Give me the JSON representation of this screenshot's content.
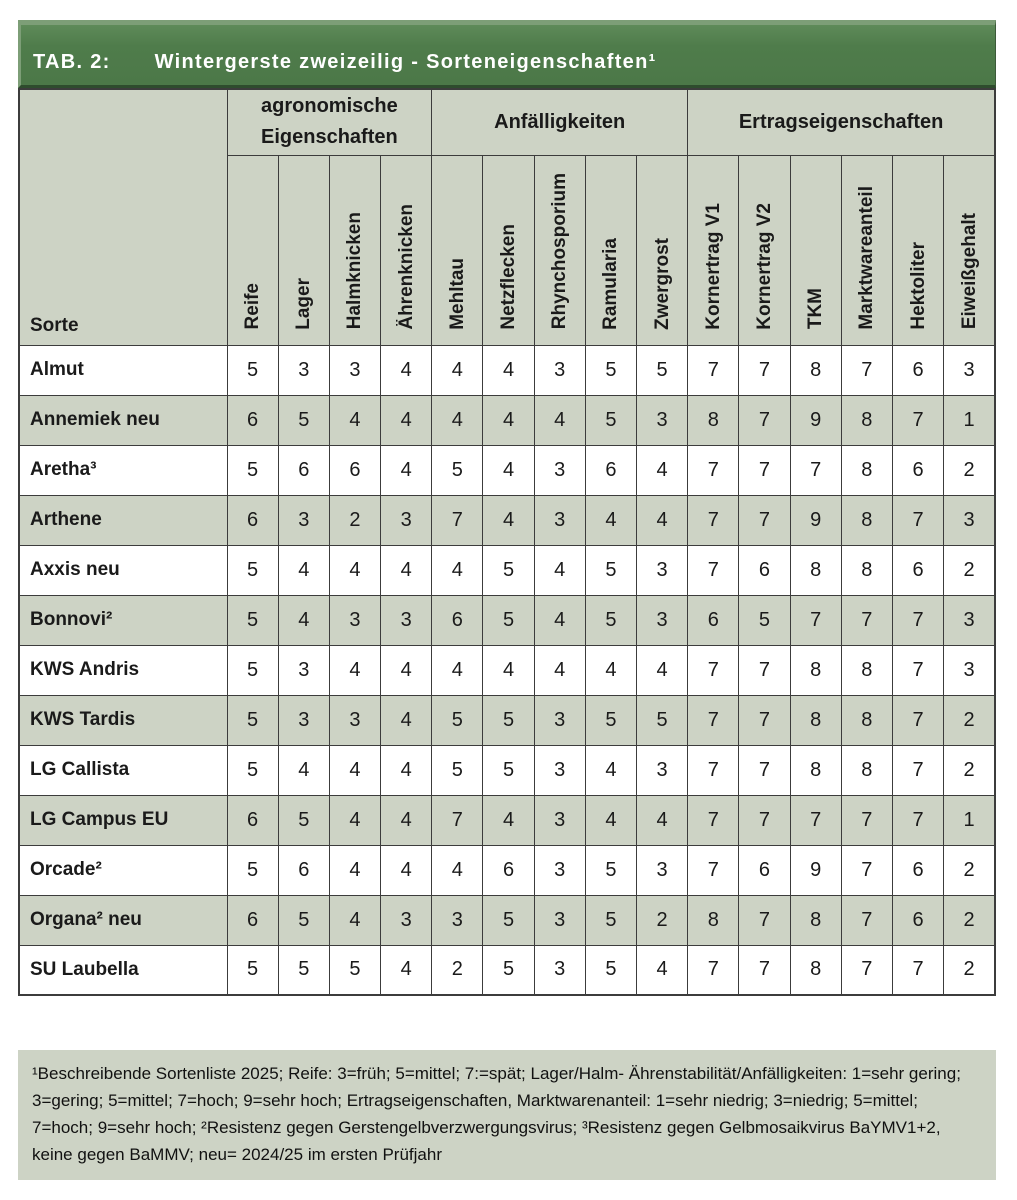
{
  "colors": {
    "title_bar_green": "#4f7c4b",
    "title_bar_green_light": "#7d9e77",
    "title_bar_green_dark": "#2e4c2d",
    "header_and_shade_bg": "#cdd3c5",
    "row_white": "#ffffff",
    "border": "#3c3c3c",
    "title_text": "#ffffff",
    "body_text": "#1a1a1a"
  },
  "title": {
    "label": "TAB. 2:",
    "text": "Wintergerste zweizeilig - Sorteneigenschaften¹"
  },
  "table": {
    "sorte_label": "Sorte",
    "groups": [
      {
        "label": "agronomische Eigenschaften",
        "span": 4
      },
      {
        "label": "Anfälligkeiten",
        "span": 5
      },
      {
        "label": "Ertragseigenschaften",
        "span": 6
      }
    ],
    "columns": [
      "Reife",
      "Lager",
      "Halmknicken",
      "Ährenknicken",
      "Mehltau",
      "Netzflecken",
      "Rhynchosporium",
      "Ramularia",
      "Zwergrost",
      "Kornertrag V1",
      "Kornertrag V2",
      "TKM",
      "Marktwareanteil",
      "Hektoliter",
      "Eiweißgehalt"
    ],
    "rows": [
      {
        "name": "Almut",
        "values": [
          5,
          3,
          3,
          4,
          4,
          4,
          3,
          5,
          5,
          7,
          7,
          8,
          7,
          6,
          3
        ]
      },
      {
        "name": "Annemiek neu",
        "values": [
          6,
          5,
          4,
          4,
          4,
          4,
          4,
          5,
          3,
          8,
          7,
          9,
          8,
          7,
          1
        ]
      },
      {
        "name": "Aretha³",
        "values": [
          5,
          6,
          6,
          4,
          5,
          4,
          3,
          6,
          4,
          7,
          7,
          7,
          8,
          6,
          2
        ]
      },
      {
        "name": "Arthene",
        "values": [
          6,
          3,
          2,
          3,
          7,
          4,
          3,
          4,
          4,
          7,
          7,
          9,
          8,
          7,
          3
        ]
      },
      {
        "name": "Axxis neu",
        "values": [
          5,
          4,
          4,
          4,
          4,
          5,
          4,
          5,
          3,
          7,
          6,
          8,
          8,
          6,
          2
        ]
      },
      {
        "name": "Bonnovi²",
        "values": [
          5,
          4,
          3,
          3,
          6,
          5,
          4,
          5,
          3,
          6,
          5,
          7,
          7,
          7,
          3
        ]
      },
      {
        "name": "KWS Andris",
        "values": [
          5,
          3,
          4,
          4,
          4,
          4,
          4,
          4,
          4,
          7,
          7,
          8,
          8,
          7,
          3
        ]
      },
      {
        "name": "KWS Tardis",
        "values": [
          5,
          3,
          3,
          4,
          5,
          5,
          3,
          5,
          5,
          7,
          7,
          8,
          8,
          7,
          2
        ]
      },
      {
        "name": "LG Callista",
        "values": [
          5,
          4,
          4,
          4,
          5,
          5,
          3,
          4,
          3,
          7,
          7,
          8,
          8,
          7,
          2
        ]
      },
      {
        "name": "LG Campus EU",
        "values": [
          6,
          5,
          4,
          4,
          7,
          4,
          3,
          4,
          4,
          7,
          7,
          7,
          7,
          7,
          1
        ]
      },
      {
        "name": "Orcade²",
        "values": [
          5,
          6,
          4,
          4,
          4,
          6,
          3,
          5,
          3,
          7,
          6,
          9,
          7,
          6,
          2
        ]
      },
      {
        "name": "Organa² neu",
        "values": [
          6,
          5,
          4,
          3,
          3,
          5,
          3,
          5,
          2,
          8,
          7,
          8,
          7,
          6,
          2
        ]
      },
      {
        "name": "SU Laubella",
        "values": [
          5,
          5,
          5,
          4,
          2,
          5,
          3,
          5,
          4,
          7,
          7,
          8,
          7,
          7,
          2
        ]
      }
    ]
  },
  "footnote": {
    "text": "¹Beschreibende Sortenliste 2025; Reife: 3=früh; 5=mittel; 7:=spät; Lager/Halm- Ährenstabilität/Anfälligkeiten: 1=sehr gering; 3=gering; 5=mittel; 7=hoch; 9=sehr hoch; Ertragseigenschaften, Marktwarenanteil: 1=sehr niedrig; 3=niedrig; 5=mittel; 7=hoch; 9=sehr hoch; ²Resistenz gegen Gerstengelbverzwergungsvirus; ³Resistenz gegen Gelbmosaikvirus BaYMV1+2, keine gegen BaMMV; neu= 2024/25 im ersten Prüfjahr"
  }
}
